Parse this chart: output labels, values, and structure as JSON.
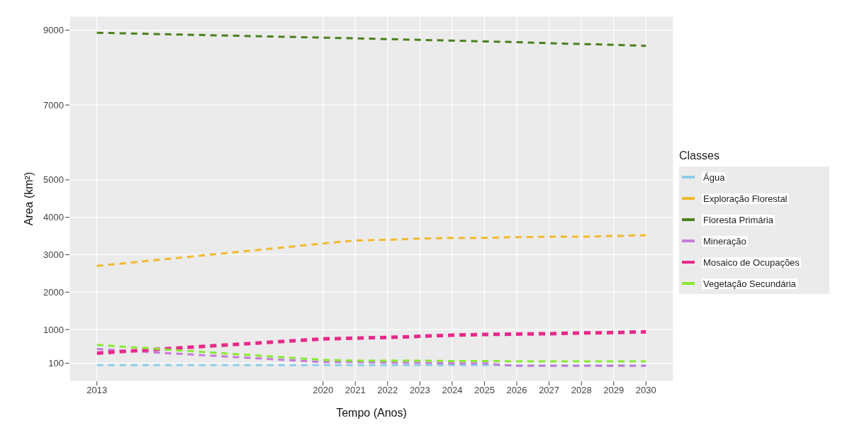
{
  "chart_data": {
    "type": "line",
    "xlabel": "Tempo (Anos)",
    "ylabel": "Area (km²)",
    "legend_title": "Classes",
    "x": [
      2013,
      2020,
      2021,
      2022,
      2023,
      2024,
      2025,
      2026,
      2027,
      2028,
      2029,
      2030
    ],
    "series": [
      {
        "name": "Água",
        "color": "#8ecde8",
        "values": [
          50,
          50,
          50,
          50,
          50,
          50,
          50,
          40,
          40,
          40,
          40,
          40
        ]
      },
      {
        "name": "Exploração Florestal",
        "color": "#f2b92c",
        "values": [
          2700,
          3300,
          3380,
          3400,
          3430,
          3450,
          3450,
          3470,
          3480,
          3480,
          3500,
          3520
        ]
      },
      {
        "name": "Floresta Primária",
        "color": "#4a7f1c",
        "values": [
          8930,
          8800,
          8780,
          8760,
          8740,
          8720,
          8700,
          8680,
          8650,
          8630,
          8610,
          8580
        ]
      },
      {
        "name": "Mineração",
        "color": "#c77ad8",
        "values": [
          480,
          130,
          130,
          120,
          110,
          100,
          100,
          30,
          30,
          30,
          30,
          30
        ]
      },
      {
        "name": "Mosaico de Ocupações",
        "color": "#e8288a",
        "values": [
          370,
          750,
          770,
          790,
          820,
          850,
          870,
          880,
          890,
          910,
          920,
          940
        ]
      },
      {
        "name": "Vegetação Secundária",
        "color": "#88e830",
        "values": [
          590,
          190,
          170,
          170,
          170,
          160,
          160,
          150,
          150,
          150,
          150,
          150
        ]
      }
    ],
    "xlim": [
      2012.15,
      2030.85
    ],
    "xticks": [
      2013,
      2020,
      2021,
      2022,
      2023,
      2024,
      2025,
      2026,
      2027,
      2028,
      2029,
      2030
    ],
    "ylim": [
      -380,
      9370
    ],
    "yticks": [
      100,
      1000,
      2000,
      3000,
      4000,
      5000,
      7000,
      9000
    ],
    "grid": true,
    "legend": "right",
    "line_style": "dashed",
    "marker": "none"
  }
}
